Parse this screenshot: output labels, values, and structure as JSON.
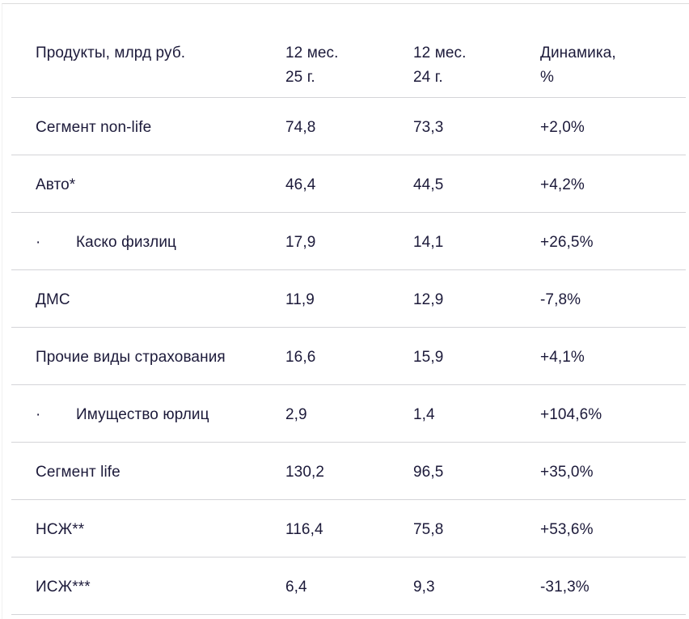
{
  "table": {
    "headers": [
      "Продукты, млрд руб.",
      "12 мес.\n25 г.",
      "12 мес.\n24 г.",
      "Динамика,\n%"
    ],
    "rows": [
      {
        "bullet": "",
        "name": "Сегмент non-life",
        "y25": "74,8",
        "y24": "73,3",
        "change": "+2,0%"
      },
      {
        "bullet": "",
        "name": "Авто*",
        "y25": "46,4",
        "y24": "44,5",
        "change": "+4,2%"
      },
      {
        "bullet": "·",
        "name": "Каско физлиц",
        "y25": "17,9",
        "y24": "14,1",
        "change": "+26,5%"
      },
      {
        "bullet": "",
        "name": "ДМС",
        "y25": "11,9",
        "y24": "12,9",
        "change": "-7,8%"
      },
      {
        "bullet": "",
        "name": "Прочие виды страхования",
        "y25": "16,6",
        "y24": "15,9",
        "change": "+4,1%"
      },
      {
        "bullet": "·",
        "name": "Имущество юрлиц",
        "y25": "2,9",
        "y24": "1,4",
        "change": "+104,6%"
      },
      {
        "bullet": "",
        "name": "Сегмент life",
        "y25": "130,2",
        "y24": "96,5",
        "change": "+35,0%"
      },
      {
        "bullet": "",
        "name": "НСЖ**",
        "y25": "116,4",
        "y24": "75,8",
        "change": "+53,6%"
      },
      {
        "bullet": "",
        "name": "ИСЖ***",
        "y25": "6,4",
        "y24": "9,3",
        "change": "-31,3%"
      }
    ]
  },
  "colors": {
    "text": "#1c1a3a",
    "divider": "#d4d4d8",
    "background": "#ffffff"
  }
}
